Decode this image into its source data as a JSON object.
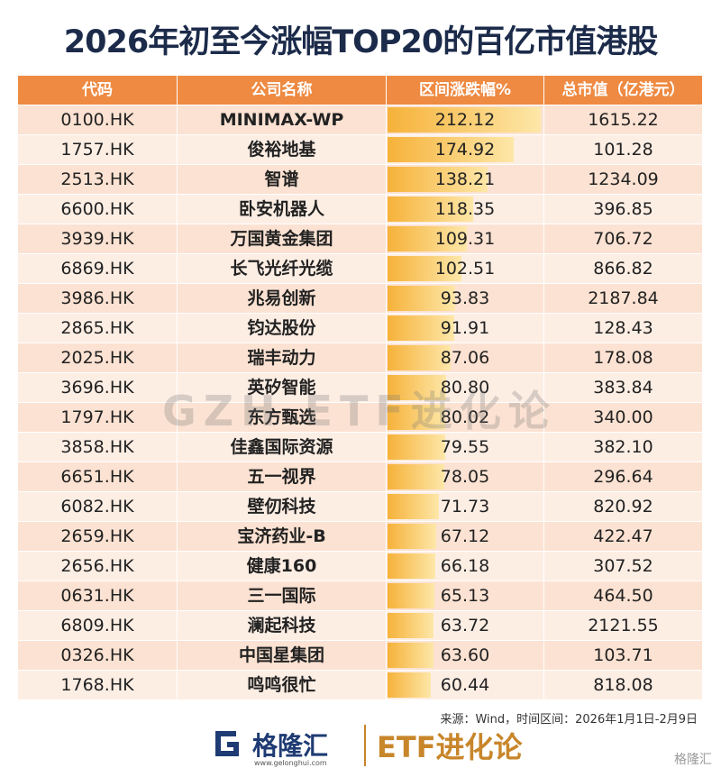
{
  "title": "2026年初至今涨幅TOP20的百亿市值港股",
  "table": {
    "columns": [
      "代码",
      "公司名称",
      "区间涨跌幅%",
      "总市值（亿港元）"
    ],
    "rows": [
      [
        "0100.HK",
        "MINIMAX-WP",
        "212.12",
        "1615.22"
      ],
      [
        "1757.HK",
        "俊裕地基",
        "174.92",
        "101.28"
      ],
      [
        "2513.HK",
        "智谱",
        "138.21",
        "1234.09"
      ],
      [
        "6600.HK",
        "卧安机器人",
        "118.35",
        "396.85"
      ],
      [
        "3939.HK",
        "万国黄金集团",
        "109.31",
        "706.72"
      ],
      [
        "6869.HK",
        "长飞光纤光缆",
        "102.51",
        "866.82"
      ],
      [
        "3986.HK",
        "兆易创新",
        "93.83",
        "2187.84"
      ],
      [
        "2865.HK",
        "钧达股份",
        "91.91",
        "128.43"
      ],
      [
        "2025.HK",
        "瑞丰动力",
        "87.06",
        "178.08"
      ],
      [
        "3696.HK",
        "英矽智能",
        "80.80",
        "383.84"
      ],
      [
        "1797.HK",
        "东方甄选",
        "80.02",
        "340.00"
      ],
      [
        "3858.HK",
        "佳鑫国际资源",
        "79.55",
        "382.10"
      ],
      [
        "6651.HK",
        "五一视界",
        "78.05",
        "296.64"
      ],
      [
        "6082.HK",
        "壁仞科技",
        "71.73",
        "820.92"
      ],
      [
        "2659.HK",
        "宝济药业-B",
        "67.12",
        "422.47"
      ],
      [
        "2656.HK",
        "健康160",
        "66.18",
        "307.52"
      ],
      [
        "0631.HK",
        "三一国际",
        "65.13",
        "464.50"
      ],
      [
        "6809.HK",
        "澜起科技",
        "63.72",
        "2121.55"
      ],
      [
        "0326.HK",
        "中国星集团",
        "63.60",
        "103.71"
      ],
      [
        "1768.HK",
        "鸣鸣很忙",
        "60.44",
        "818.08"
      ]
    ]
  },
  "source": "来源：Wind，时间区间：2026年1月1日-2月9日",
  "watermark": "GZH ETF进化论",
  "footer": {
    "logo": "格隆汇",
    "url": "www.gelonghui.com",
    "brand": "ETF进化论",
    "corner": "格隆汇"
  }
}
